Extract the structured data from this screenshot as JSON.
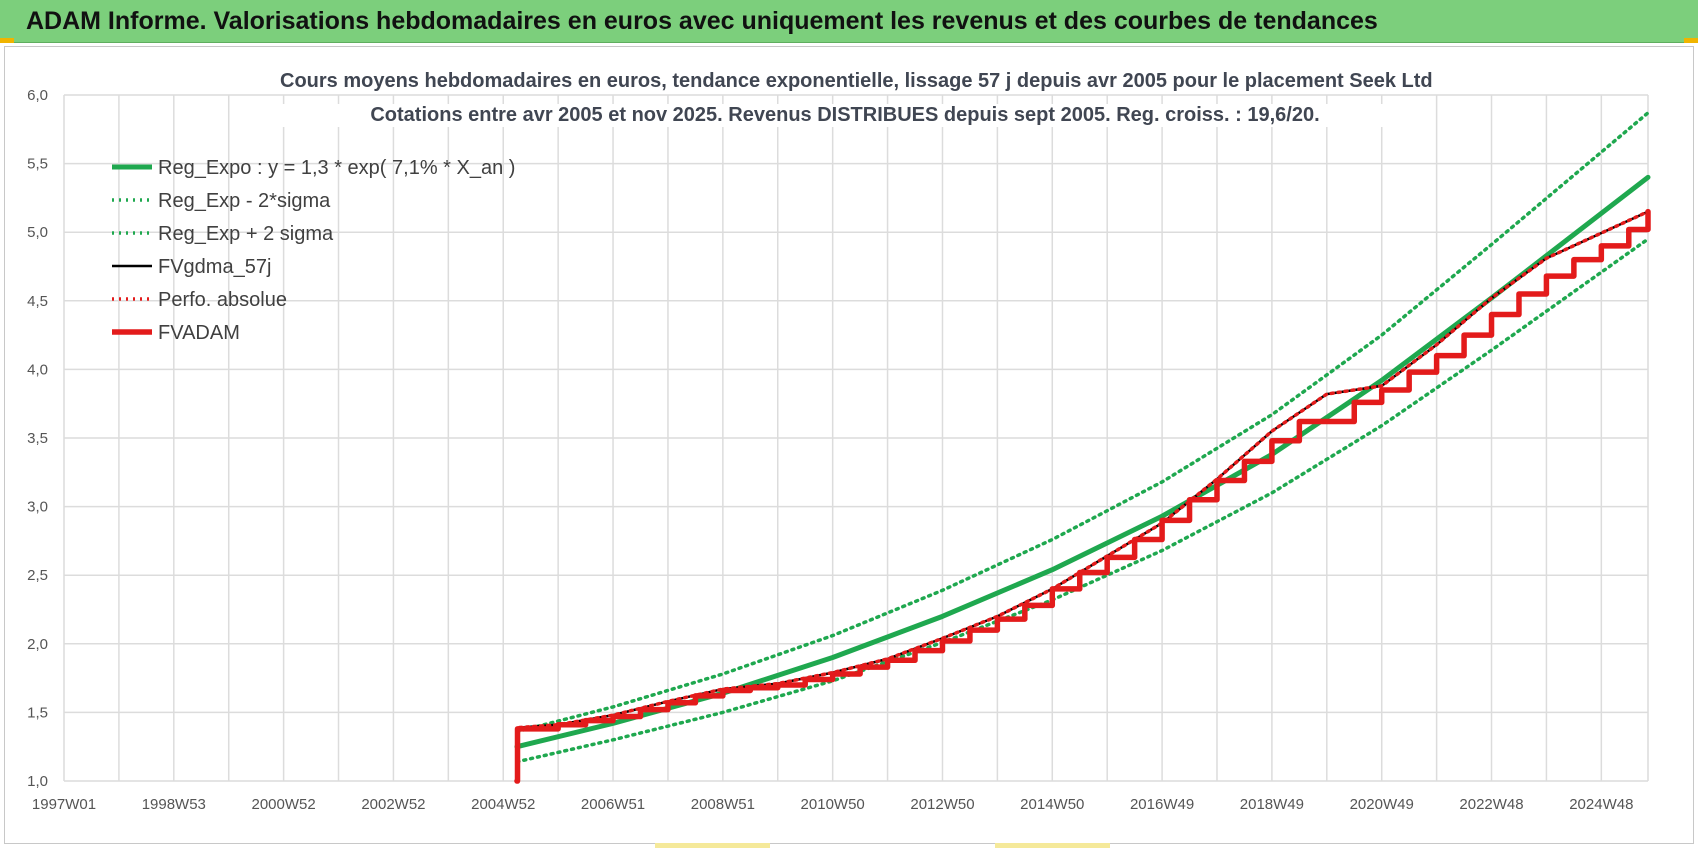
{
  "header": {
    "banner_text": "ADAM Informe. Valorisations hebdomadaires en euros avec uniquement les revenus et des courbes de tendances"
  },
  "colors": {
    "banner": "#7ccf7c",
    "green": "#1fa84f",
    "red": "#e31b1b",
    "black": "#000000",
    "grid": "#dcdcdc"
  },
  "chart_data": {
    "type": "line",
    "title_line1": "Cours moyens hebdomadaires en euros, tendance exponentielle, lissage 57 j depuis avr 2005 pour le placement Seek Ltd",
    "title_line2": "Cotations entre avr 2005 et nov 2025. Revenus DISTRIBUES depuis sept 2005. Reg. croiss. : 19,6/20.",
    "xlabel": "",
    "ylabel": "",
    "x_ticks": [
      "1997W01",
      "1998W53",
      "2000W52",
      "2002W52",
      "2004W52",
      "2006W51",
      "2008W51",
      "2010W50",
      "2012W50",
      "2014W50",
      "2016W49",
      "2018W49",
      "2020W49",
      "2022W48",
      "2024W48"
    ],
    "y_ticks": [
      "1,0",
      "1,5",
      "2,0",
      "2,5",
      "3,0",
      "3,5",
      "4,0",
      "4,5",
      "5,0",
      "5,5",
      "6,0"
    ],
    "ylim": [
      1.0,
      6.0
    ],
    "xlim": [
      1997.0,
      2025.85
    ],
    "grid": true,
    "legend_position": "top-left",
    "series": [
      {
        "name": "Reg_Expo : y = 1,3 * exp( 7,1% *  X_an )",
        "style": "solid-thick",
        "color": "#1fa84f",
        "x": [
          2005.25,
          2007,
          2009,
          2011,
          2013,
          2015,
          2017,
          2019,
          2021,
          2023,
          2025.85
        ],
        "y": [
          1.25,
          1.42,
          1.64,
          1.9,
          2.2,
          2.54,
          2.93,
          3.38,
          3.92,
          4.52,
          5.4
        ]
      },
      {
        "name": "Reg_Exp - 2*sigma",
        "style": "dotted",
        "color": "#1fa84f",
        "x": [
          2005.25,
          2007,
          2009,
          2011,
          2013,
          2015,
          2017,
          2019,
          2021,
          2023,
          2025.85
        ],
        "y": [
          1.14,
          1.3,
          1.5,
          1.73,
          2.01,
          2.32,
          2.68,
          3.1,
          3.59,
          4.14,
          4.95
        ]
      },
      {
        "name": "Reg_Exp + 2 sigma",
        "style": "dotted",
        "color": "#1fa84f",
        "x": [
          2005.25,
          2007,
          2009,
          2011,
          2013,
          2015,
          2017,
          2019,
          2021,
          2023,
          2025.85
        ],
        "y": [
          1.36,
          1.54,
          1.78,
          2.06,
          2.39,
          2.76,
          3.18,
          3.67,
          4.25,
          4.91,
          5.87
        ]
      },
      {
        "name": "FVgdma_57j",
        "style": "solid",
        "color": "#000000",
        "x": [
          2005.3,
          2006.0,
          2007.0,
          2008.0,
          2009.0,
          2010.0,
          2011.0,
          2012.0,
          2013.0,
          2014.0,
          2015.0,
          2016.0,
          2017.0,
          2018.0,
          2019.0,
          2020.0,
          2021.0,
          2022.0,
          2023.0,
          2024.0,
          2025.85
        ],
        "y": [
          1.39,
          1.41,
          1.48,
          1.58,
          1.67,
          1.71,
          1.79,
          1.89,
          2.04,
          2.2,
          2.4,
          2.64,
          2.88,
          3.2,
          3.55,
          3.82,
          3.88,
          4.18,
          4.52,
          4.81,
          5.15
        ]
      },
      {
        "name": "Perfo. absolue",
        "style": "dotted",
        "color": "#e31b1b",
        "x": [
          2005.3,
          2006.0,
          2007.0,
          2008.0,
          2009.0,
          2010.0,
          2011.0,
          2012.0,
          2013.0,
          2014.0,
          2015.0,
          2016.0,
          2017.0,
          2018.0,
          2019.0,
          2020.0,
          2021.0,
          2022.0,
          2023.0,
          2024.0,
          2025.85
        ],
        "y": [
          1.39,
          1.41,
          1.48,
          1.58,
          1.67,
          1.71,
          1.79,
          1.89,
          2.04,
          2.2,
          2.4,
          2.64,
          2.88,
          3.2,
          3.55,
          3.82,
          3.88,
          4.18,
          4.52,
          4.81,
          5.15
        ]
      },
      {
        "name": "FVADAM",
        "style": "step-thick",
        "color": "#e31b1b",
        "x": [
          2005.25,
          2005.26,
          2006.0,
          2006.5,
          2007.0,
          2007.5,
          2008.0,
          2008.5,
          2009.0,
          2009.5,
          2010.0,
          2010.5,
          2011.0,
          2011.5,
          2012.0,
          2012.5,
          2013.0,
          2013.5,
          2014.0,
          2014.5,
          2015.0,
          2015.5,
          2016.0,
          2016.5,
          2017.0,
          2017.5,
          2018.0,
          2018.5,
          2019.0,
          2019.5,
          2020.5,
          2021.0,
          2021.5,
          2022.0,
          2022.5,
          2023.0,
          2023.5,
          2024.0,
          2024.5,
          2025.0,
          2025.5,
          2025.85
        ],
        "y": [
          1.0,
          1.38,
          1.41,
          1.44,
          1.47,
          1.52,
          1.57,
          1.62,
          1.66,
          1.68,
          1.7,
          1.74,
          1.78,
          1.83,
          1.88,
          1.95,
          2.02,
          2.1,
          2.18,
          2.28,
          2.4,
          2.52,
          2.63,
          2.76,
          2.9,
          3.05,
          3.19,
          3.33,
          3.48,
          3.62,
          3.76,
          3.85,
          3.98,
          4.1,
          4.25,
          4.4,
          4.55,
          4.68,
          4.8,
          4.9,
          5.02,
          5.15
        ]
      }
    ]
  }
}
